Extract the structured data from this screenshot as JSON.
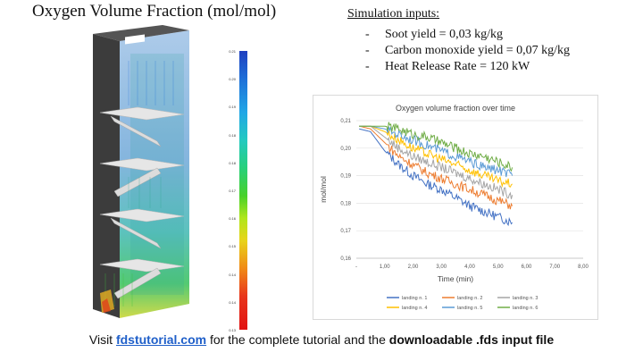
{
  "title": "Oxygen Volume Fraction (mol/mol)",
  "colorbar": {
    "ticks": [
      "0.21",
      "0.20",
      "0.19",
      "0.18",
      "0.18",
      "0.17",
      "0.16",
      "0.15",
      "0.14",
      "0.14",
      "0.13"
    ]
  },
  "inputs": {
    "heading": "Simulation inputs:",
    "items": [
      {
        "dash": "-",
        "text": "Soot yield = 0,03 kg/kg"
      },
      {
        "dash": "-",
        "text": "Carbon monoxide yield = 0,07 kg/kg"
      },
      {
        "dash": "-",
        "text": "Heat Release Rate = 120 kW"
      }
    ]
  },
  "chart_data": {
    "type": "line",
    "title": "Oxygen volume fraction over time",
    "xlabel": "Time (min)",
    "ylabel": "mol/mol",
    "xlim": [
      0,
      8
    ],
    "ylim": [
      0.16,
      0.21
    ],
    "xticks": [
      "-",
      "1,00",
      "2,00",
      "3,00",
      "4,00",
      "5,00",
      "6,00",
      "7,00",
      "8,00"
    ],
    "yticks": [
      "0,16",
      "0,17",
      "0,18",
      "0,19",
      "0,20",
      "0,21"
    ],
    "grid": true,
    "legend_position": "bottom",
    "series": [
      {
        "name": "landing n. 1",
        "color": "#4472c4",
        "points": [
          [
            0.1,
            0.207
          ],
          [
            0.5,
            0.206
          ],
          [
            1.0,
            0.199
          ],
          [
            1.5,
            0.194
          ],
          [
            2.0,
            0.19
          ],
          [
            2.5,
            0.187
          ],
          [
            3.0,
            0.185
          ],
          [
            3.5,
            0.182
          ],
          [
            4.0,
            0.179
          ],
          [
            4.5,
            0.177
          ],
          [
            5.0,
            0.175
          ],
          [
            5.5,
            0.173
          ]
        ]
      },
      {
        "name": "landing n. 2",
        "color": "#ed7d31",
        "points": [
          [
            0.1,
            0.208
          ],
          [
            0.5,
            0.207
          ],
          [
            1.0,
            0.202
          ],
          [
            1.5,
            0.197
          ],
          [
            2.0,
            0.194
          ],
          [
            2.5,
            0.191
          ],
          [
            3.0,
            0.189
          ],
          [
            3.5,
            0.187
          ],
          [
            4.0,
            0.185
          ],
          [
            4.5,
            0.183
          ],
          [
            5.0,
            0.181
          ],
          [
            5.5,
            0.179
          ]
        ]
      },
      {
        "name": "landing n. 3",
        "color": "#a5a5a5",
        "points": [
          [
            0.1,
            0.208
          ],
          [
            0.5,
            0.208
          ],
          [
            1.0,
            0.204
          ],
          [
            1.5,
            0.2
          ],
          [
            2.0,
            0.197
          ],
          [
            2.5,
            0.195
          ],
          [
            3.0,
            0.193
          ],
          [
            3.5,
            0.191
          ],
          [
            4.0,
            0.189
          ],
          [
            4.5,
            0.187
          ],
          [
            5.0,
            0.185
          ],
          [
            5.5,
            0.183
          ]
        ]
      },
      {
        "name": "landing n. 4",
        "color": "#ffc000",
        "points": [
          [
            0.1,
            0.208
          ],
          [
            0.5,
            0.208
          ],
          [
            1.0,
            0.206
          ],
          [
            1.5,
            0.203
          ],
          [
            2.0,
            0.2
          ],
          [
            2.5,
            0.198
          ],
          [
            3.0,
            0.196
          ],
          [
            3.5,
            0.194
          ],
          [
            4.0,
            0.192
          ],
          [
            4.5,
            0.19
          ],
          [
            5.0,
            0.188
          ],
          [
            5.5,
            0.187
          ]
        ]
      },
      {
        "name": "landing n. 5",
        "color": "#5b9bd5",
        "points": [
          [
            0.1,
            0.208
          ],
          [
            0.5,
            0.208
          ],
          [
            1.0,
            0.207
          ],
          [
            1.5,
            0.205
          ],
          [
            2.0,
            0.203
          ],
          [
            2.5,
            0.201
          ],
          [
            3.0,
            0.199
          ],
          [
            3.5,
            0.197
          ],
          [
            4.0,
            0.195
          ],
          [
            4.5,
            0.193
          ],
          [
            5.0,
            0.192
          ],
          [
            5.5,
            0.19
          ]
        ]
      },
      {
        "name": "landing n. 6",
        "color": "#70ad47",
        "points": [
          [
            0.1,
            0.208
          ],
          [
            0.5,
            0.208
          ],
          [
            1.0,
            0.208
          ],
          [
            1.5,
            0.207
          ],
          [
            2.0,
            0.205
          ],
          [
            2.5,
            0.204
          ],
          [
            3.0,
            0.202
          ],
          [
            3.5,
            0.2
          ],
          [
            4.0,
            0.198
          ],
          [
            4.5,
            0.197
          ],
          [
            5.0,
            0.195
          ],
          [
            5.5,
            0.193
          ]
        ]
      }
    ]
  },
  "footer": {
    "pre": "Visit ",
    "link": "fdstutorial.com",
    "mid": " for the complete tutorial and the ",
    "bold": "downloadable .fds input file"
  }
}
